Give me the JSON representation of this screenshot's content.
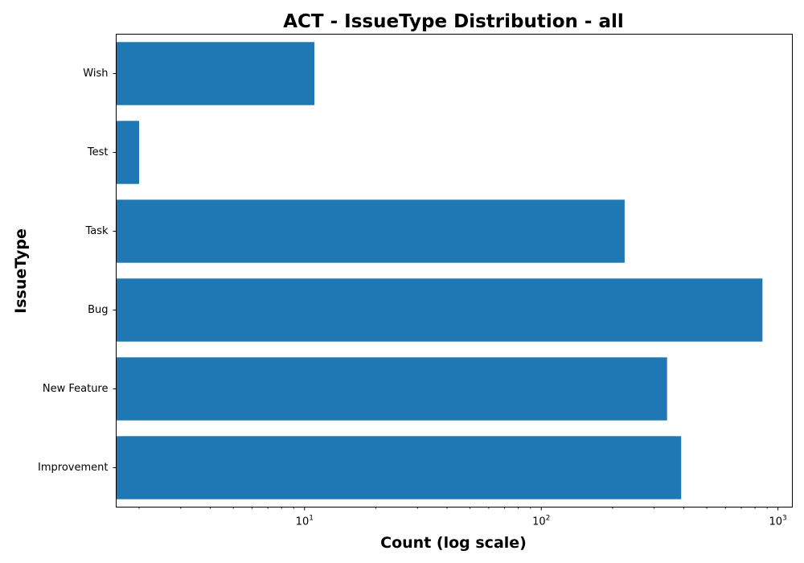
{
  "chart_data": {
    "type": "bar",
    "orientation": "horizontal",
    "title": "ACT - IssueType Distribution - all",
    "xlabel": "Count (log scale)",
    "ylabel": "IssueType",
    "x_scale": "log",
    "xlim": [
      1.6,
      1150
    ],
    "x_tick_labels": [
      {
        "value": 10,
        "base": "10",
        "exp": "1"
      },
      {
        "value": 100,
        "base": "10",
        "exp": "2"
      },
      {
        "value": 1000,
        "base": "10",
        "exp": "3"
      }
    ],
    "categories": [
      "Improvement",
      "New Feature",
      "Bug",
      "Task",
      "Test",
      "Wish"
    ],
    "values": [
      390,
      340,
      860,
      225,
      2,
      11
    ],
    "bar_color": "#1f77b4",
    "grid": false,
    "legend": "none"
  }
}
